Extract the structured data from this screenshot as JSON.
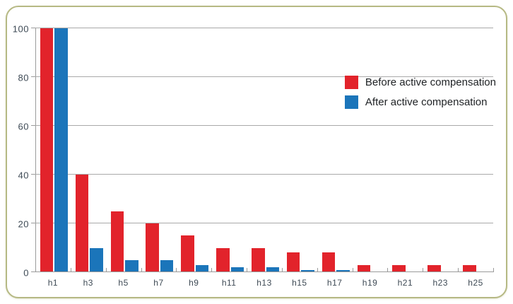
{
  "chart_data": {
    "type": "bar",
    "title": "",
    "xlabel": "",
    "ylabel": "",
    "categories": [
      "h1",
      "h3",
      "h5",
      "h7",
      "h9",
      "h11",
      "h13",
      "h15",
      "h17",
      "h19",
      "h21",
      "h23",
      "h25"
    ],
    "series": [
      {
        "name": "Before active compensation",
        "color": "#e2232b",
        "values": [
          100,
          40,
          25,
          20,
          15,
          10,
          10,
          8,
          8,
          3,
          3,
          3,
          3
        ]
      },
      {
        "name": "After active compensation",
        "color": "#1b75ba",
        "values": [
          100,
          10,
          5,
          5,
          3,
          2,
          2,
          1,
          1,
          0,
          0,
          0,
          0
        ]
      }
    ],
    "ylim": [
      0,
      100
    ],
    "yticks": [
      0,
      20,
      40,
      60,
      80,
      100
    ],
    "grid": true,
    "legend_position": "upper right"
  },
  "styles": {
    "card_border_color": "#b6b984",
    "gridline_color": "#a9a9a9",
    "axis_label_color": "#3e4a55"
  }
}
